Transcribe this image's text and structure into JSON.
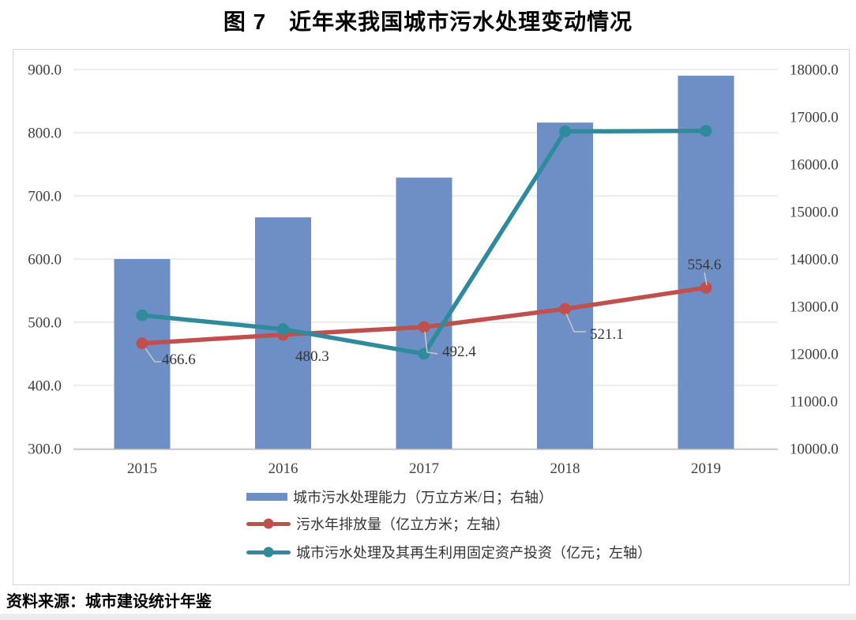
{
  "page": {
    "title": "图 7　近年来我国城市污水处理变动情况",
    "source_note": "资料来源：城市建设统计年鉴"
  },
  "colors": {
    "bar_blue": "#6e8fc5",
    "line_red": "#c0504d",
    "line_teal": "#2f8b9b",
    "gridline": "#d9d9d9",
    "axis_line": "#c3c3c3",
    "tick_text": "#3f3f3f",
    "data_label_text": "#363636",
    "leader_line": "#c9c9c9",
    "figure_border": "#d6d6d6"
  },
  "chart_data": {
    "type": "bar",
    "subtype": "combo-bar-line-dual-axis",
    "title": "图 7　近年来我国城市污水处理变动情况",
    "categories": [
      "2015",
      "2016",
      "2017",
      "2018",
      "2019"
    ],
    "series": [
      {
        "name": "城市污水处理能力（万立方米/日；右轴）",
        "type": "bar",
        "axis": "right",
        "color": "#6e8fc5",
        "values": [
          14000,
          14880,
          15720,
          16880,
          17870
        ]
      },
      {
        "name": "污水年排放量（亿立方米；左轴）",
        "type": "line",
        "axis": "left",
        "color": "#c0504d",
        "values": [
          466.6,
          480.3,
          492.4,
          521.1,
          554.6
        ],
        "labels": [
          "466.6",
          "480.3",
          "492.4",
          "521.1",
          "554.6"
        ]
      },
      {
        "name": "城市污水处理及其再生利用固定资产投资（亿元；左轴）",
        "type": "line",
        "axis": "left",
        "color": "#2f8b9b",
        "values": [
          511,
          489,
          450,
          802,
          803
        ]
      }
    ],
    "left_axis": {
      "min": 300,
      "max": 900,
      "step": 100,
      "tick_labels": [
        "900.0",
        "800.0",
        "700.0",
        "600.0",
        "500.0",
        "400.0",
        "300.0"
      ]
    },
    "right_axis": {
      "min": 10000,
      "max": 18000,
      "step": 1000,
      "tick_labels": [
        "18000.0",
        "17000.0",
        "16000.0",
        "15000.0",
        "14000.0",
        "13000.0",
        "12000.0",
        "11000.0",
        "10000.0"
      ]
    },
    "x_axis": {
      "tick_labels": [
        "2015",
        "2016",
        "2017",
        "2018",
        "2019"
      ]
    },
    "grid": "horizontal",
    "legend_position": "bottom"
  }
}
